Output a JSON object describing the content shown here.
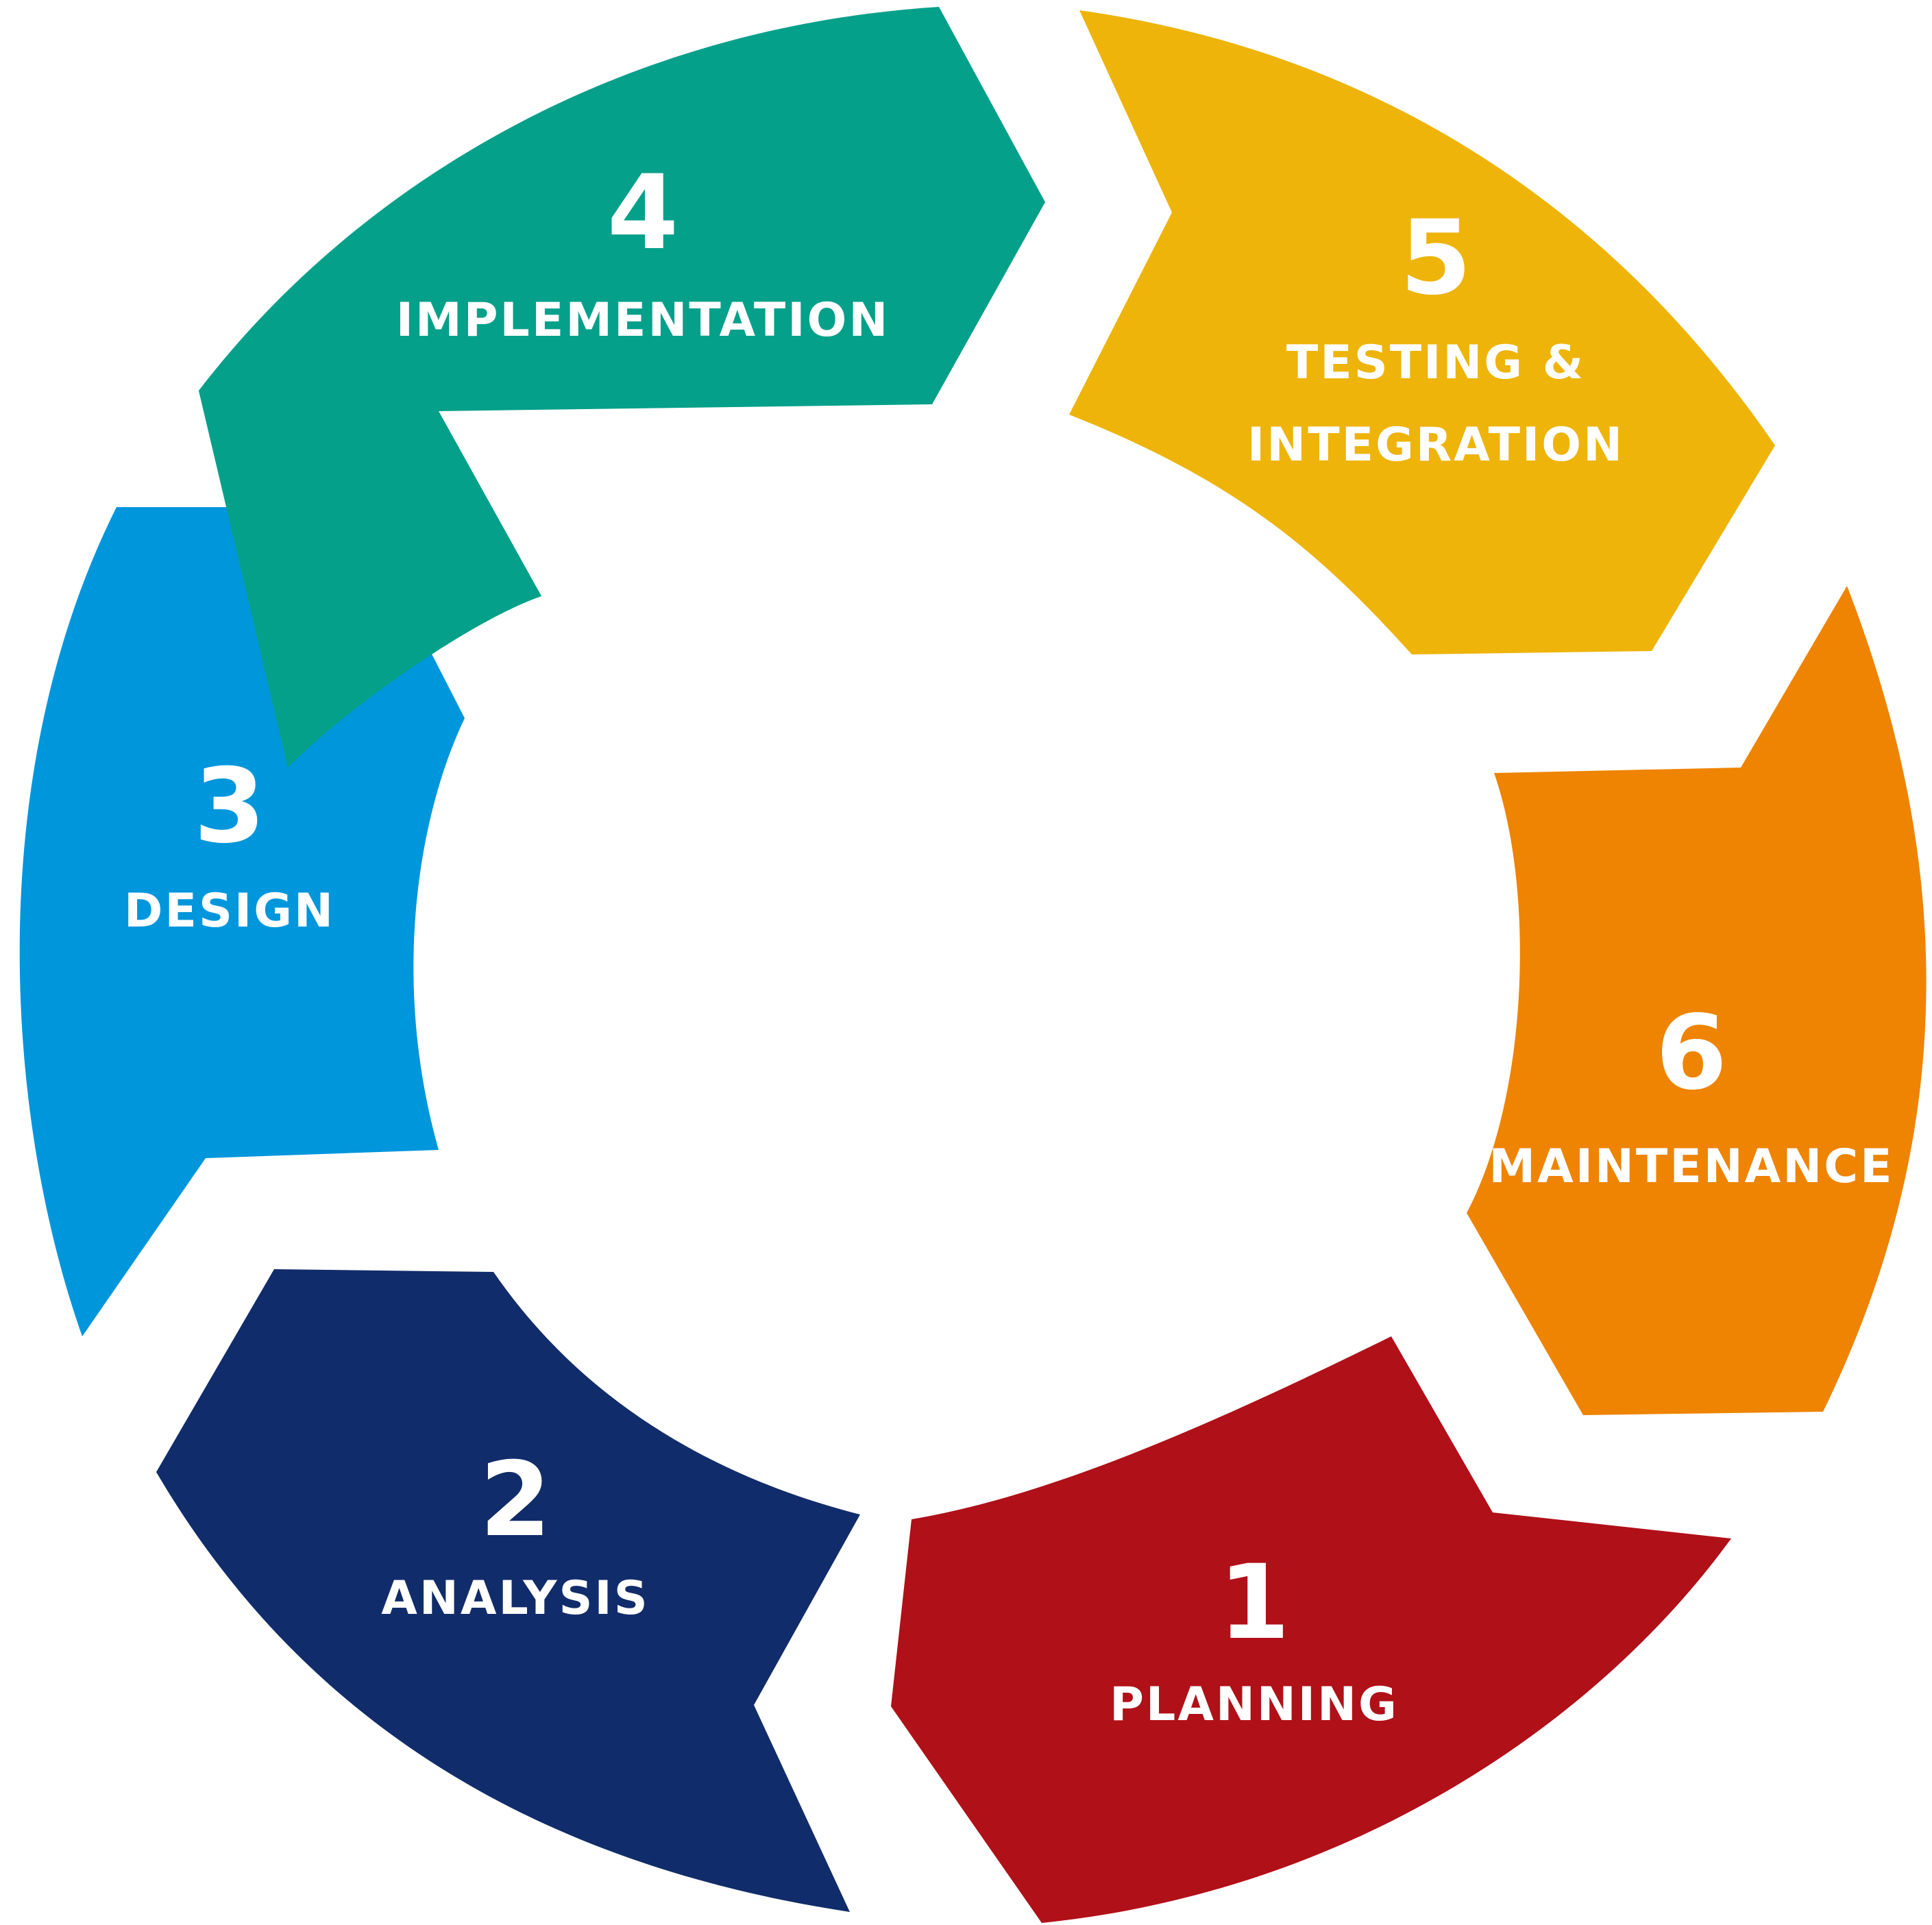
{
  "stages": [
    {
      "number": "1",
      "label_lines": [
        "PLANNING"
      ],
      "color": "#B01018"
    },
    {
      "number": "2",
      "label_lines": [
        "ANALYSIS"
      ],
      "color": "#112C6A"
    },
    {
      "number": "3",
      "label_lines": [
        "DESIGN"
      ],
      "color": "#0096DC"
    },
    {
      "number": "4",
      "label_lines": [
        "IMPLEMENTATION"
      ],
      "color": "#05A08A"
    },
    {
      "number": "5",
      "label_lines": [
        "TESTING &",
        "INTEGRATION"
      ],
      "color": "#EEB40A"
    },
    {
      "number": "6",
      "label_lines": [
        "MAINTENANCE"
      ],
      "color": "#EE8402"
    }
  ]
}
